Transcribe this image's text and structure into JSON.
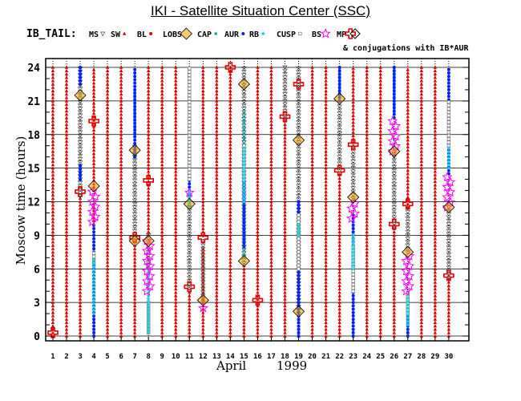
{
  "title": "IKI - Satellite Situation Center (SSC)",
  "legend_prefix": "IB_TAIL:",
  "legend_items": [
    {
      "label": "MS",
      "symbol": "triangle-down",
      "color": "#4a4a4a"
    },
    {
      "label": "SW",
      "symbol": "triangle-up",
      "color": "#e00000"
    },
    {
      "label": "BL",
      "symbol": "dot",
      "color": "#e00000"
    },
    {
      "label": "LOBS",
      "symbol": "diamond-filled",
      "color": "#f0a000"
    },
    {
      "label": "CAP",
      "symbol": "square-small",
      "color": "#1aa0a0"
    },
    {
      "label": "AUR",
      "symbol": "dot",
      "color": "#0020ff"
    },
    {
      "label": "RB",
      "symbol": "star-filled",
      "color": "#20d0e0"
    },
    {
      "label": "CUSP",
      "symbol": "square-open",
      "color": "#777777"
    },
    {
      "label": "BS",
      "symbol": "star-open",
      "color": "#ff00ff"
    },
    {
      "label": "MP",
      "symbol": "plus-open",
      "color": "#e00000"
    }
  ],
  "conjugation_note": "& conjugations with IB*AUR",
  "chart_data": {
    "type": "scatter",
    "title": "IKI - Satellite Situation Center (SSC)",
    "xlabel": "April",
    "xlabel_year": "1999",
    "ylabel": "Moscow time (hours)",
    "x_ticks": [
      "1",
      "2",
      "3",
      "4",
      "5",
      "6",
      "7",
      "8",
      "9",
      "10",
      "11",
      "12",
      "13",
      "14",
      "15",
      "16",
      "17",
      "18",
      "19",
      "20",
      "21",
      "22",
      "23",
      "24",
      "25",
      "26",
      "27",
      "28",
      "29",
      "30"
    ],
    "y_ticks": [
      0,
      3,
      6,
      9,
      12,
      15,
      18,
      21,
      24
    ],
    "xlim": [
      1,
      30
    ],
    "ylim": [
      0,
      24
    ],
    "days": [
      {
        "day": 1,
        "segments": [
          [
            "SW",
            0,
            24
          ]
        ],
        "markers": [
          [
            "MP",
            0.3
          ]
        ]
      },
      {
        "day": 2,
        "segments": [
          [
            "SW",
            0,
            24
          ]
        ],
        "markers": []
      },
      {
        "day": 3,
        "segments": [
          [
            "SW",
            0,
            12.5
          ],
          [
            "MS",
            12.5,
            24
          ],
          [
            "AUR",
            14,
            15.2
          ],
          [
            "AUR",
            22.5,
            24
          ]
        ],
        "markers": [
          [
            "MP",
            12.9
          ],
          [
            "LOBS",
            21.5
          ]
        ]
      },
      {
        "day": 4,
        "segments": [
          [
            "SW",
            10,
            12
          ],
          [
            "BS",
            10.2,
            13
          ],
          [
            "AUR",
            0,
            10
          ],
          [
            "CAP",
            0,
            8
          ],
          [
            "RB",
            2,
            7
          ],
          [
            "CUSP",
            6.5,
            7.5
          ],
          [
            "SW",
            13,
            24
          ]
        ],
        "markers": [
          [
            "MP",
            19.2
          ],
          [
            "LOBS",
            13.4
          ]
        ]
      },
      {
        "day": 5,
        "segments": [
          [
            "SW",
            0,
            24
          ]
        ],
        "markers": []
      },
      {
        "day": 6,
        "segments": [
          [
            "SW",
            0,
            24
          ]
        ],
        "markers": []
      },
      {
        "day": 7,
        "segments": [
          [
            "SW",
            0,
            8.5
          ],
          [
            "MS",
            8.5,
            17
          ],
          [
            "AUR",
            16,
            24
          ],
          [
            "CAP",
            18,
            22
          ]
        ],
        "markers": [
          [
            "MP",
            8.8
          ],
          [
            "LOBS",
            16.6
          ],
          [
            "LOBS",
            8.5
          ]
        ]
      },
      {
        "day": 8,
        "segments": [
          [
            "SW",
            9,
            24
          ],
          [
            "BS",
            4,
            8.5
          ],
          [
            "RB",
            0.3,
            6
          ],
          [
            "CUSP",
            0.3,
            3
          ],
          [
            "MS",
            6,
            9
          ]
        ],
        "markers": [
          [
            "MP",
            13.9
          ],
          [
            "LOBS",
            8.5
          ]
        ]
      },
      {
        "day": 9,
        "segments": [
          [
            "SW",
            0,
            24
          ]
        ],
        "markers": []
      },
      {
        "day": 10,
        "segments": [
          [
            "SW",
            0,
            24
          ]
        ],
        "markers": []
      },
      {
        "day": 11,
        "segments": [
          [
            "SW",
            0,
            4
          ],
          [
            "MS",
            4,
            11.5
          ],
          [
            "AUR",
            11.5,
            24
          ],
          [
            "RB",
            11.5,
            13
          ],
          [
            "CUSP",
            14,
            24
          ]
        ],
        "markers": [
          [
            "MP",
            4.4
          ],
          [
            "LOBS",
            11.8
          ],
          [
            "BS",
            12.8
          ]
        ]
      },
      {
        "day": 12,
        "segments": [
          [
            "SW",
            0,
            8
          ],
          [
            "MS",
            3,
            8.5
          ],
          [
            "SW",
            9,
            24
          ]
        ],
        "markers": [
          [
            "MP",
            8.8
          ],
          [
            "LOBS",
            3.2
          ],
          [
            "BS",
            2.5
          ]
        ]
      },
      {
        "day": 13,
        "segments": [
          [
            "SW",
            0,
            24
          ]
        ],
        "markers": []
      },
      {
        "day": 14,
        "segments": [
          [
            "SW",
            0,
            24
          ]
        ],
        "markers": [
          [
            "MP",
            24
          ]
        ]
      },
      {
        "day": 15,
        "segments": [
          [
            "SW",
            0,
            6.5
          ],
          [
            "MS",
            6.5,
            24
          ],
          [
            "AUR",
            8,
            17
          ],
          [
            "CAP",
            7,
            20
          ],
          [
            "RB",
            12,
            17
          ],
          [
            "CUSP",
            14,
            17
          ]
        ],
        "markers": [
          [
            "LOBS",
            6.7
          ],
          [
            "LOBS",
            22.5
          ]
        ]
      },
      {
        "day": 16,
        "segments": [
          [
            "SW",
            0,
            24
          ]
        ],
        "markers": [
          [
            "MP",
            3.2
          ]
        ]
      },
      {
        "day": 17,
        "segments": [
          [
            "SW",
            0,
            24
          ]
        ],
        "markers": []
      },
      {
        "day": 18,
        "segments": [
          [
            "MS",
            19.5,
            24
          ],
          [
            "SW",
            0,
            19.5
          ]
        ],
        "markers": [
          [
            "MP",
            19.6
          ]
        ]
      },
      {
        "day": 19,
        "segments": [
          [
            "SW",
            0,
            2
          ],
          [
            "MS",
            2,
            24
          ],
          [
            "AUR",
            0,
            12
          ],
          [
            "CAP",
            0,
            11
          ],
          [
            "RB",
            9,
            10
          ],
          [
            "CUSP",
            6,
            11
          ]
        ],
        "markers": [
          [
            "LOBS",
            2.2
          ],
          [
            "LOBS",
            17.5
          ],
          [
            "MP",
            22.5
          ]
        ]
      },
      {
        "day": 20,
        "segments": [
          [
            "SW",
            0,
            24
          ]
        ],
        "markers": []
      },
      {
        "day": 21,
        "segments": [
          [
            "SW",
            0,
            24
          ]
        ],
        "markers": []
      },
      {
        "day": 22,
        "segments": [
          [
            "SW",
            0,
            14.5
          ],
          [
            "MS",
            14.5,
            21
          ],
          [
            "AUR",
            21,
            24
          ],
          [
            "CAP",
            21.5,
            24
          ]
        ],
        "markers": [
          [
            "MP",
            14.8
          ],
          [
            "LOBS",
            21.2
          ]
        ]
      },
      {
        "day": 23,
        "segments": [
          [
            "SW",
            17,
            24
          ],
          [
            "MS",
            12,
            17
          ],
          [
            "BS",
            10.5,
            12
          ],
          [
            "AUR",
            0,
            11
          ],
          [
            "CAP",
            0,
            10
          ],
          [
            "RB",
            6,
            9
          ],
          [
            "CUSP",
            4,
            8
          ]
        ],
        "markers": [
          [
            "MP",
            17.1
          ],
          [
            "LOBS",
            12.4
          ]
        ]
      },
      {
        "day": 24,
        "segments": [
          [
            "SW",
            0,
            24
          ]
        ],
        "markers": []
      },
      {
        "day": 25,
        "segments": [
          [
            "SW",
            0,
            24
          ]
        ],
        "markers": []
      },
      {
        "day": 26,
        "segments": [
          [
            "SW",
            0,
            10
          ],
          [
            "MS",
            10,
            16.5
          ],
          [
            "BS",
            16.5,
            19.5
          ],
          [
            "AUR",
            19.5,
            24
          ],
          [
            "CAP",
            20,
            24
          ]
        ],
        "markers": [
          [
            "MP",
            10
          ],
          [
            "LOBS",
            16.5
          ]
        ]
      },
      {
        "day": 27,
        "segments": [
          [
            "SW",
            11.5,
            24
          ],
          [
            "MS",
            7.5,
            11.5
          ],
          [
            "BS",
            4,
            7.5
          ],
          [
            "AUR",
            0,
            4
          ],
          [
            "RB",
            1,
            3.5
          ],
          [
            "CUSP",
            2,
            4
          ]
        ],
        "markers": [
          [
            "MP",
            11.8
          ],
          [
            "LOBS",
            7.5
          ]
        ]
      },
      {
        "day": 28,
        "segments": [
          [
            "SW",
            0,
            24
          ]
        ],
        "markers": []
      },
      {
        "day": 29,
        "segments": [
          [
            "SW",
            0,
            24
          ]
        ],
        "markers": []
      },
      {
        "day": 30,
        "segments": [
          [
            "SW",
            0,
            5.5
          ],
          [
            "MS",
            5.5,
            11.5
          ],
          [
            "BS",
            11.5,
            14.5
          ],
          [
            "AUR",
            14.5,
            24
          ],
          [
            "CUSP",
            17,
            21
          ],
          [
            "RB",
            15,
            17
          ]
        ],
        "markers": [
          [
            "MP",
            5.4
          ],
          [
            "LOBS",
            11.5
          ]
        ]
      }
    ]
  }
}
